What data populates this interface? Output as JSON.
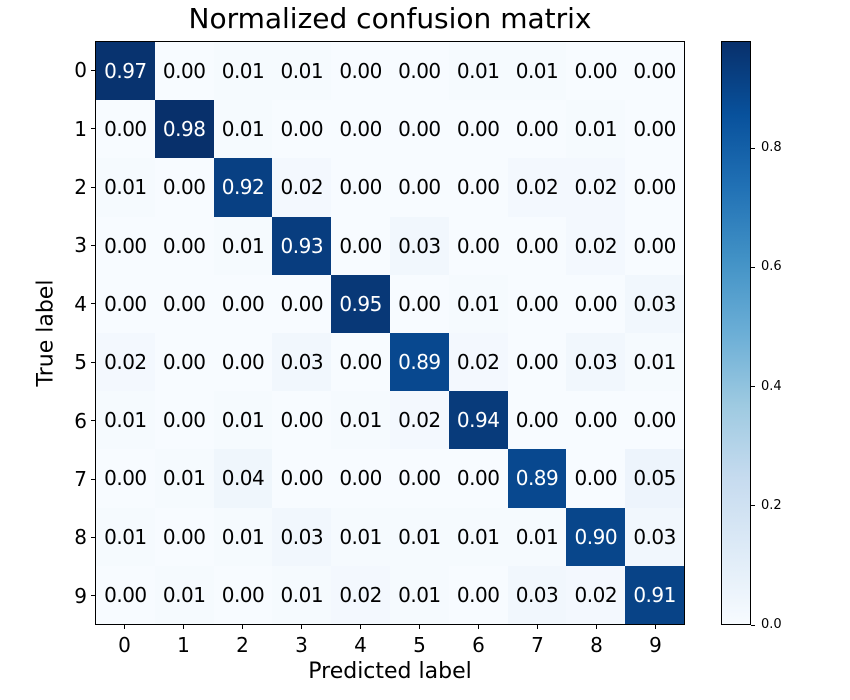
{
  "chart_data": {
    "type": "heatmap",
    "title": "Normalized confusion matrix",
    "xlabel": "Predicted label",
    "ylabel": "True label",
    "x_tick_labels": [
      "0",
      "1",
      "2",
      "3",
      "4",
      "5",
      "6",
      "7",
      "8",
      "9"
    ],
    "y_tick_labels": [
      "0",
      "1",
      "2",
      "3",
      "4",
      "5",
      "6",
      "7",
      "8",
      "9"
    ],
    "matrix": [
      [
        0.97,
        0.0,
        0.01,
        0.01,
        0.0,
        0.0,
        0.01,
        0.01,
        0.0,
        0.0
      ],
      [
        0.0,
        0.98,
        0.01,
        0.0,
        0.0,
        0.0,
        0.0,
        0.0,
        0.01,
        0.0
      ],
      [
        0.01,
        0.0,
        0.92,
        0.02,
        0.0,
        0.0,
        0.0,
        0.02,
        0.02,
        0.0
      ],
      [
        0.0,
        0.0,
        0.01,
        0.93,
        0.0,
        0.03,
        0.0,
        0.0,
        0.02,
        0.0
      ],
      [
        0.0,
        0.0,
        0.0,
        0.0,
        0.95,
        0.0,
        0.01,
        0.0,
        0.0,
        0.03
      ],
      [
        0.02,
        0.0,
        0.0,
        0.03,
        0.0,
        0.89,
        0.02,
        0.0,
        0.03,
        0.01
      ],
      [
        0.01,
        0.0,
        0.01,
        0.0,
        0.01,
        0.02,
        0.94,
        0.0,
        0.0,
        0.0
      ],
      [
        0.0,
        0.01,
        0.04,
        0.0,
        0.0,
        0.0,
        0.0,
        0.89,
        0.0,
        0.05
      ],
      [
        0.01,
        0.0,
        0.01,
        0.03,
        0.01,
        0.01,
        0.01,
        0.01,
        0.9,
        0.03
      ],
      [
        0.0,
        0.01,
        0.0,
        0.01,
        0.02,
        0.01,
        0.0,
        0.03,
        0.02,
        0.91
      ]
    ],
    "value_decimals": 2,
    "vmin": 0.0,
    "vmax": 0.98,
    "colormap": "Blues",
    "colormap_stops": [
      "#f7fbff",
      "#deebf7",
      "#c6dbef",
      "#9ecae1",
      "#6baed6",
      "#4292c6",
      "#2171b5",
      "#08519c",
      "#08306b"
    ],
    "colorbar_ticks": [
      0.0,
      0.2,
      0.4,
      0.6,
      0.8
    ],
    "cell_text_color_light": "#ffffff",
    "cell_text_color_dark": "#000000",
    "grid": false,
    "legend": "colorbar-right"
  }
}
